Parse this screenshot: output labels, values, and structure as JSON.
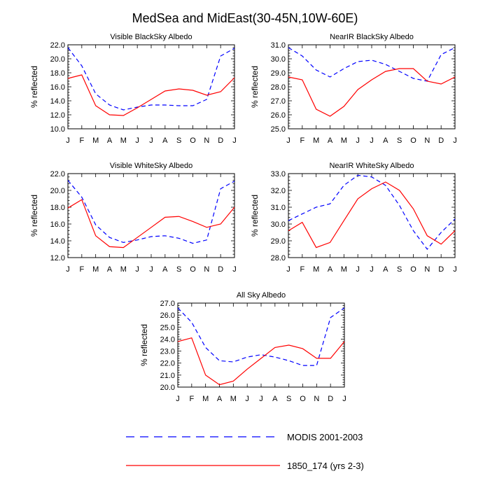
{
  "figure": {
    "title": "MedSea and MidEast(30-45N,10W-60E)",
    "ylabel": "% reflected"
  },
  "legend": {
    "entries": [
      {
        "label": "MODIS 2001-2003",
        "color": "#0000ff",
        "style": "dashed"
      },
      {
        "label": "1850_174 (yrs 2-3)",
        "color": "#ff0000",
        "style": "solid"
      }
    ]
  },
  "chart_data": [
    {
      "type": "line",
      "title": "Visible BlackSky Albedo",
      "ylabel": "% reflected",
      "categories": [
        "J",
        "F",
        "M",
        "A",
        "M",
        "J",
        "J",
        "A",
        "S",
        "O",
        "N",
        "D",
        "J"
      ],
      "ylim": [
        10,
        22
      ],
      "yticks": [
        "10.0",
        "12.0",
        "14.0",
        "16.0",
        "18.0",
        "20.0",
        "22.0"
      ],
      "series": [
        {
          "name": "MODIS 2001-2003",
          "color": "#0000ff",
          "style": "dashed",
          "values": [
            21.6,
            19.0,
            15.0,
            13.4,
            12.7,
            13.1,
            13.4,
            13.4,
            13.3,
            13.3,
            14.2,
            20.4,
            21.5
          ]
        },
        {
          "name": "1850_174 (yrs 2-3)",
          "color": "#ff0000",
          "style": "solid",
          "values": [
            17.2,
            17.7,
            13.3,
            12.0,
            11.9,
            13.0,
            14.2,
            15.4,
            15.7,
            15.5,
            14.8,
            15.3,
            17.3
          ]
        }
      ]
    },
    {
      "type": "line",
      "title": "NearIR BlackSky Albedo",
      "ylabel": "% reflected",
      "categories": [
        "J",
        "F",
        "M",
        "A",
        "M",
        "J",
        "J",
        "A",
        "S",
        "O",
        "N",
        "D",
        "J"
      ],
      "ylim": [
        25,
        31
      ],
      "yticks": [
        "25.0",
        "26.0",
        "27.0",
        "28.0",
        "29.0",
        "30.0",
        "31.0"
      ],
      "series": [
        {
          "name": "MODIS 2001-2003",
          "color": "#0000ff",
          "style": "dashed",
          "values": [
            30.8,
            30.2,
            29.2,
            28.7,
            29.3,
            29.8,
            29.9,
            29.6,
            29.1,
            28.6,
            28.4,
            30.3,
            30.8
          ]
        },
        {
          "name": "1850_174 (yrs 2-3)",
          "color": "#ff0000",
          "style": "solid",
          "values": [
            28.7,
            28.5,
            26.4,
            25.9,
            26.6,
            27.8,
            28.5,
            29.1,
            29.3,
            29.3,
            28.4,
            28.2,
            28.7
          ]
        }
      ]
    },
    {
      "type": "line",
      "title": "Visible WhiteSky Albedo",
      "ylabel": "% reflected",
      "categories": [
        "J",
        "F",
        "M",
        "A",
        "M",
        "J",
        "J",
        "A",
        "S",
        "O",
        "N",
        "D",
        "J"
      ],
      "ylim": [
        12,
        22
      ],
      "yticks": [
        "12.0",
        "14.0",
        "16.0",
        "18.0",
        "20.0",
        "22.0"
      ],
      "series": [
        {
          "name": "MODIS 2001-2003",
          "color": "#0000ff",
          "style": "dashed",
          "values": [
            21.2,
            19.2,
            15.9,
            14.4,
            13.8,
            14.1,
            14.5,
            14.6,
            14.3,
            13.7,
            14.1,
            20.2,
            21.1
          ]
        },
        {
          "name": "1850_174 (yrs 2-3)",
          "color": "#ff0000",
          "style": "solid",
          "values": [
            17.9,
            18.9,
            14.6,
            13.3,
            13.2,
            14.4,
            15.6,
            16.8,
            16.9,
            16.3,
            15.6,
            16.0,
            18.0
          ]
        }
      ]
    },
    {
      "type": "line",
      "title": "NearIR WhiteSky Albedo",
      "ylabel": "% reflected",
      "categories": [
        "J",
        "F",
        "M",
        "A",
        "M",
        "J",
        "J",
        "A",
        "S",
        "O",
        "N",
        "D",
        "J"
      ],
      "ylim": [
        28,
        33
      ],
      "yticks": [
        "28.0",
        "29.0",
        "30.0",
        "31.0",
        "32.0",
        "33.0"
      ],
      "series": [
        {
          "name": "MODIS 2001-2003",
          "color": "#0000ff",
          "style": "dashed",
          "values": [
            30.2,
            30.6,
            31.0,
            31.2,
            32.3,
            32.9,
            32.8,
            32.3,
            31.1,
            29.6,
            28.5,
            29.5,
            30.3
          ]
        },
        {
          "name": "1850_174 (yrs 2-3)",
          "color": "#ff0000",
          "style": "solid",
          "values": [
            29.6,
            30.1,
            28.6,
            28.9,
            30.2,
            31.5,
            32.1,
            32.5,
            32.0,
            30.9,
            29.3,
            28.8,
            29.6
          ]
        }
      ]
    },
    {
      "type": "line",
      "title": "All Sky Albedo",
      "ylabel": "% reflected",
      "categories": [
        "J",
        "F",
        "M",
        "A",
        "M",
        "J",
        "J",
        "A",
        "S",
        "O",
        "N",
        "D",
        "J"
      ],
      "ylim": [
        20,
        27
      ],
      "yticks": [
        "20.0",
        "21.0",
        "22.0",
        "23.0",
        "24.0",
        "25.0",
        "26.0",
        "27.0"
      ],
      "series": [
        {
          "name": "MODIS 2001-2003",
          "color": "#0000ff",
          "style": "dashed",
          "values": [
            26.6,
            25.4,
            23.3,
            22.2,
            22.1,
            22.5,
            22.7,
            22.5,
            22.2,
            21.8,
            21.8,
            25.8,
            26.6
          ]
        },
        {
          "name": "1850_174 (yrs 2-3)",
          "color": "#ff0000",
          "style": "solid",
          "values": [
            23.8,
            24.1,
            21.0,
            20.2,
            20.5,
            21.5,
            22.4,
            23.3,
            23.5,
            23.2,
            22.4,
            22.4,
            23.8
          ]
        }
      ]
    }
  ]
}
